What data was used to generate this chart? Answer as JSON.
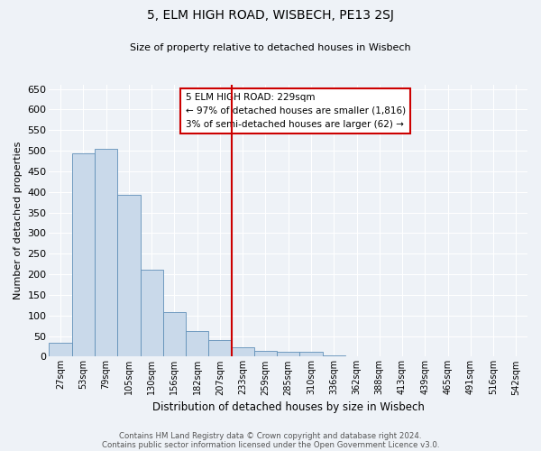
{
  "title": "5, ELM HIGH ROAD, WISBECH, PE13 2SJ",
  "subtitle": "Size of property relative to detached houses in Wisbech",
  "xlabel": "Distribution of detached houses by size in Wisbech",
  "ylabel": "Number of detached properties",
  "bin_labels": [
    "27sqm",
    "53sqm",
    "79sqm",
    "105sqm",
    "130sqm",
    "156sqm",
    "182sqm",
    "207sqm",
    "233sqm",
    "259sqm",
    "285sqm",
    "310sqm",
    "336sqm",
    "362sqm",
    "388sqm",
    "413sqm",
    "439sqm",
    "465sqm",
    "491sqm",
    "516sqm",
    "542sqm"
  ],
  "bar_values": [
    33,
    493,
    504,
    393,
    211,
    108,
    62,
    40,
    22,
    14,
    12,
    11,
    2,
    0,
    0,
    0,
    0,
    1,
    0,
    1,
    1
  ],
  "bar_color": "#c9d9ea",
  "bar_edge_color": "#6090b8",
  "vline_color": "#cc0000",
  "annotation_text": "5 ELM HIGH ROAD: 229sqm\n← 97% of detached houses are smaller (1,816)\n3% of semi-detached houses are larger (62) →",
  "annotation_box_color": "#cc0000",
  "ylim": [
    0,
    660
  ],
  "yticks": [
    0,
    50,
    100,
    150,
    200,
    250,
    300,
    350,
    400,
    450,
    500,
    550,
    600,
    650
  ],
  "bg_color": "#eef2f7",
  "grid_color": "#ffffff",
  "footer_line1": "Contains HM Land Registry data © Crown copyright and database right 2024.",
  "footer_line2": "Contains public sector information licensed under the Open Government Licence v3.0."
}
